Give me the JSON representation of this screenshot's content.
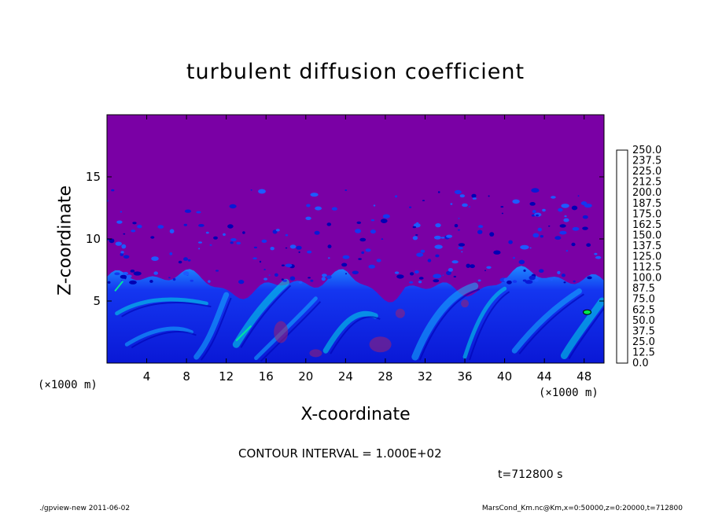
{
  "chart_data": {
    "type": "heatmap",
    "title": "turbulent diffusion coefficient",
    "xlabel": "X-coordinate",
    "ylabel": "Z-coordinate",
    "x_unit_left": "(×1000 m)",
    "x_unit_right": "(×1000 m)",
    "xlim": [
      0,
      50
    ],
    "ylim": [
      0,
      20
    ],
    "x_ticks": [
      "4",
      "8",
      "12",
      "16",
      "20",
      "24",
      "28",
      "32",
      "36",
      "40",
      "44",
      "48"
    ],
    "y_ticks": [
      "5",
      "10",
      "15"
    ],
    "colorbar_levels": [
      "0.0",
      "12.5",
      "25.0",
      "37.5",
      "50.0",
      "62.5",
      "75.0",
      "87.5",
      "100.0",
      "112.5",
      "125.0",
      "137.5",
      "150.0",
      "162.5",
      "175.0",
      "187.5",
      "200.0",
      "212.5",
      "225.0",
      "237.5",
      "250.0"
    ],
    "colorbar_colors": [
      "#7a00a5",
      "#0000b4",
      "#0a18d6",
      "#1436f0",
      "#1e5aff",
      "#1e8cff",
      "#14b4ff",
      "#00e0e6",
      "#00e6a0",
      "#00e650",
      "#14e614",
      "#64e600",
      "#aaf000",
      "#e6f000",
      "#ffd200",
      "#ffaa00",
      "#ff7800",
      "#ff4600",
      "#ff2828",
      "#ff6e6e",
      "#ffaaaa"
    ],
    "background_value": 0.0,
    "boundary_layer_top_km": 6.5,
    "contour_interval": "CONTOUR INTERVAL = 1.000E+02",
    "time": "t=712800 s"
  },
  "footer": {
    "left": "./gpview-new 2011-06-02",
    "right": "MarsCond_Km.nc@Km,x=0:50000,z=0:20000,t=712800"
  }
}
